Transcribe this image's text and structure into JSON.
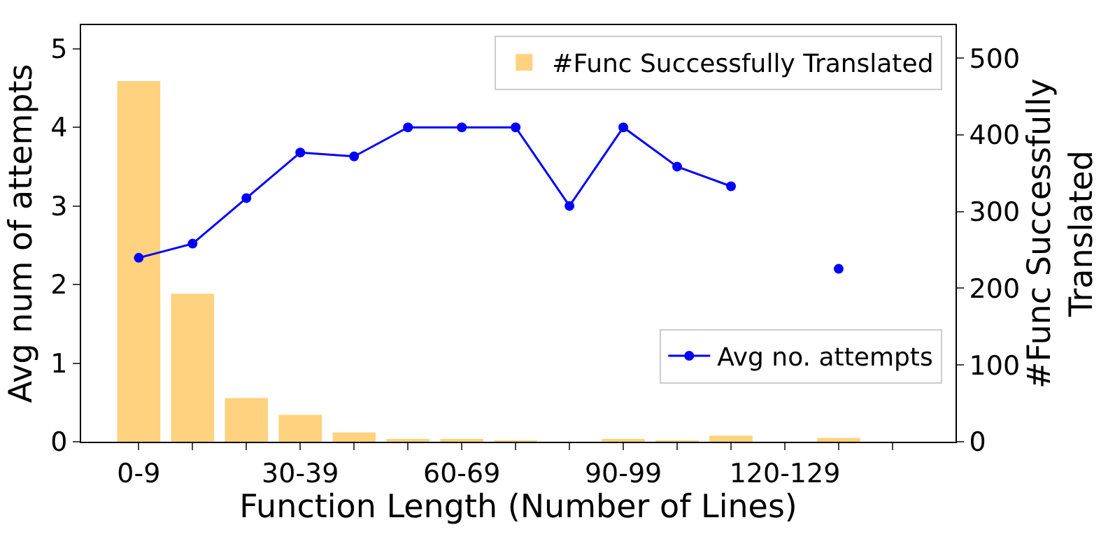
{
  "chart_data": {
    "type": "bar",
    "xlabel": "Function Length (Number of Lines)",
    "ylabel": "Avg num of attempts",
    "y2label": "#Func Successfully\nTranslated",
    "categories": [
      "0-9",
      null,
      null,
      "30-39",
      null,
      null,
      "60-69",
      null,
      null,
      "90-99",
      null,
      null,
      "120-129",
      null,
      null
    ],
    "series": [
      {
        "name": "#Func Successfully Translated",
        "axis": "y2",
        "color": "#ffd27f",
        "values": [
          470,
          193,
          57,
          35,
          12,
          3,
          3,
          1,
          0,
          2,
          1,
          8,
          0,
          5,
          0
        ]
      },
      {
        "name": "Avg no. attempts",
        "type": "line",
        "axis": "y",
        "color": "#0000ff",
        "marker": "circle",
        "line_style": "solid",
        "values": [
          2.34,
          2.52,
          3.1,
          3.68,
          3.63,
          4.0,
          4.0,
          4.0,
          3.0,
          4.0,
          3.5,
          3.25,
          null,
          2.2,
          null
        ]
      }
    ],
    "ylim": [
      0,
      5.3
    ],
    "yticks": [
      0,
      1,
      2,
      3,
      4,
      5
    ],
    "y2lim": [
      0,
      543
    ],
    "y2ticks": [
      0,
      100,
      200,
      300,
      400,
      500
    ],
    "legend": "top right"
  }
}
